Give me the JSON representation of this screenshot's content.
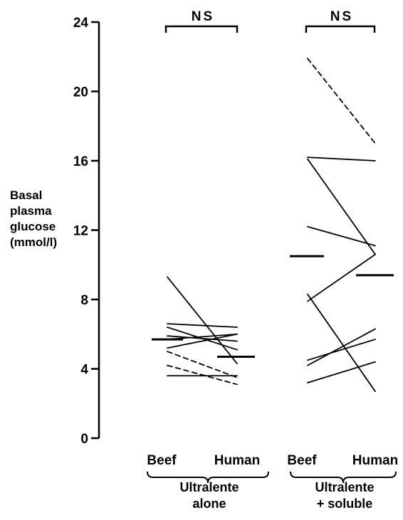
{
  "chart_data": {
    "type": "line",
    "ylabel_lines": [
      "Basal",
      "plasma",
      "glucose",
      "(mmol/l)"
    ],
    "ylim": [
      0,
      24
    ],
    "yticks": [
      0,
      4,
      8,
      12,
      16,
      20,
      24
    ],
    "grid": false,
    "legend": "none",
    "groups": [
      {
        "name_lines": [
          "Ultralente",
          "alone"
        ],
        "categories": [
          "Beef",
          "Human"
        ],
        "significance": "NS",
        "mean_beef": 5.7,
        "mean_human": 4.7,
        "pairs": [
          {
            "beef": 9.3,
            "human": 4.3,
            "style": "solid"
          },
          {
            "beef": 6.6,
            "human": 6.4,
            "style": "solid"
          },
          {
            "beef": 6.4,
            "human": 5.1,
            "style": "solid"
          },
          {
            "beef": 5.9,
            "human": 5.6,
            "style": "solid"
          },
          {
            "beef": 5.7,
            "human": 6.0,
            "style": "solid"
          },
          {
            "beef": 5.2,
            "human": 6.0,
            "style": "solid"
          },
          {
            "beef": 5.0,
            "human": 3.5,
            "style": "dashed"
          },
          {
            "beef": 4.2,
            "human": 3.1,
            "style": "dashed"
          },
          {
            "beef": 3.6,
            "human": 3.6,
            "style": "solid"
          }
        ]
      },
      {
        "name_lines": [
          "Ultralente",
          "+ soluble"
        ],
        "categories": [
          "Beef",
          "Human"
        ],
        "significance": "NS",
        "mean_beef": 10.5,
        "mean_human": 9.4,
        "pairs": [
          {
            "beef": 21.9,
            "human": 17.0,
            "style": "dashed"
          },
          {
            "beef": 16.2,
            "human": 16.0,
            "style": "solid"
          },
          {
            "beef": 16.1,
            "human": 10.6,
            "style": "solid"
          },
          {
            "beef": 12.2,
            "human": 11.1,
            "style": "solid"
          },
          {
            "beef": 8.3,
            "human": 2.7,
            "style": "solid"
          },
          {
            "beef": 7.9,
            "human": 10.6,
            "style": "solid"
          },
          {
            "beef": 4.5,
            "human": 5.7,
            "style": "solid"
          },
          {
            "beef": 4.2,
            "human": 6.3,
            "style": "solid"
          },
          {
            "beef": 3.2,
            "human": 4.4,
            "style": "solid"
          }
        ]
      }
    ]
  }
}
